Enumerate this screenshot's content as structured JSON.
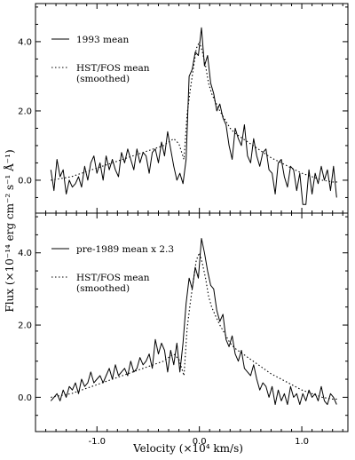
{
  "chart_data": [
    {
      "type": "line",
      "panel": "top",
      "xlim": [
        -1.6,
        1.45
      ],
      "ylim": [
        -0.95,
        5.1
      ],
      "yticks": [
        0.0,
        2.0,
        4.0
      ],
      "ytick_labels": [
        "0.0",
        "2.0",
        "4.0"
      ],
      "legend_position": "top-left",
      "series": [
        {
          "name": "1993 mean",
          "style": "solid",
          "x": [
            -1.45,
            -1.42,
            -1.39,
            -1.36,
            -1.33,
            -1.3,
            -1.27,
            -1.24,
            -1.21,
            -1.18,
            -1.15,
            -1.12,
            -1.09,
            -1.06,
            -1.03,
            -1.0,
            -0.97,
            -0.94,
            -0.91,
            -0.88,
            -0.85,
            -0.82,
            -0.79,
            -0.76,
            -0.73,
            -0.7,
            -0.67,
            -0.64,
            -0.61,
            -0.58,
            -0.55,
            -0.52,
            -0.49,
            -0.46,
            -0.43,
            -0.4,
            -0.37,
            -0.34,
            -0.31,
            -0.28,
            -0.25,
            -0.22,
            -0.19,
            -0.16,
            -0.13,
            -0.1,
            -0.07,
            -0.04,
            -0.01,
            0.02,
            0.05,
            0.08,
            0.11,
            0.14,
            0.17,
            0.2,
            0.23,
            0.26,
            0.29,
            0.32,
            0.35,
            0.38,
            0.41,
            0.44,
            0.47,
            0.5,
            0.53,
            0.56,
            0.59,
            0.62,
            0.65,
            0.68,
            0.71,
            0.74,
            0.77,
            0.8,
            0.83,
            0.86,
            0.89,
            0.92,
            0.95,
            0.98,
            1.01,
            1.04,
            1.07,
            1.1,
            1.13,
            1.16,
            1.19,
            1.22,
            1.25,
            1.28,
            1.31,
            1.34
          ],
          "y": [
            0.3,
            -0.3,
            0.6,
            0.1,
            0.3,
            -0.4,
            0.0,
            -0.2,
            -0.1,
            0.1,
            -0.2,
            0.4,
            0.0,
            0.5,
            0.7,
            0.2,
            0.5,
            0.0,
            0.7,
            0.3,
            0.6,
            0.3,
            0.1,
            0.8,
            0.5,
            0.9,
            0.6,
            0.3,
            0.9,
            0.5,
            0.8,
            0.7,
            0.2,
            0.8,
            0.9,
            0.5,
            1.1,
            0.7,
            1.4,
            0.9,
            0.4,
            0.0,
            0.2,
            -0.1,
            0.6,
            3.0,
            3.2,
            3.7,
            3.6,
            4.4,
            3.3,
            3.6,
            2.8,
            2.5,
            2.0,
            2.2,
            1.8,
            1.6,
            1.0,
            0.6,
            1.5,
            1.2,
            1.0,
            1.6,
            0.7,
            0.5,
            1.2,
            0.7,
            0.4,
            0.8,
            0.9,
            0.3,
            0.2,
            -0.4,
            0.5,
            0.6,
            0.1,
            -0.2,
            0.4,
            0.3,
            -0.3,
            0.2,
            -0.7,
            -0.7,
            0.3,
            -0.4,
            0.2,
            -0.1,
            0.4,
            0.0,
            0.3,
            -0.3,
            0.4,
            -0.5
          ]
        },
        {
          "name": "HST/FOS mean\n(smoothed)",
          "style": "dotted",
          "x": [
            -1.45,
            -1.35,
            -1.25,
            -1.15,
            -1.05,
            -0.95,
            -0.85,
            -0.75,
            -0.65,
            -0.55,
            -0.45,
            -0.4,
            -0.35,
            -0.3,
            -0.25,
            -0.2,
            -0.15,
            -0.12,
            -0.09,
            -0.06,
            -0.03,
            0.0,
            0.03,
            0.06,
            0.09,
            0.12,
            0.15,
            0.2,
            0.25,
            0.3,
            0.35,
            0.4,
            0.5,
            0.6,
            0.7,
            0.8,
            0.9,
            1.0,
            1.1,
            1.2,
            1.3,
            1.35
          ],
          "y": [
            0.0,
            0.05,
            0.1,
            0.2,
            0.3,
            0.4,
            0.5,
            0.6,
            0.7,
            0.8,
            0.9,
            0.95,
            1.0,
            1.1,
            1.2,
            1.05,
            0.6,
            1.9,
            2.6,
            3.2,
            3.8,
            4.0,
            3.7,
            3.3,
            2.8,
            2.5,
            2.3,
            2.0,
            1.75,
            1.5,
            1.35,
            1.25,
            1.05,
            0.85,
            0.65,
            0.5,
            0.35,
            0.2,
            0.1,
            0.0,
            -0.05,
            -0.05
          ]
        }
      ]
    },
    {
      "type": "line",
      "panel": "bottom",
      "xlim": [
        -1.6,
        1.45
      ],
      "ylim": [
        -0.95,
        5.1
      ],
      "yticks": [
        0.0,
        2.0,
        4.0
      ],
      "ytick_labels": [
        "0.0",
        "2.0",
        "4.0"
      ],
      "legend_position": "top-left",
      "series": [
        {
          "name": "pre-1989 mean x 2.3",
          "style": "solid",
          "x": [
            -1.45,
            -1.42,
            -1.39,
            -1.36,
            -1.33,
            -1.3,
            -1.27,
            -1.24,
            -1.21,
            -1.18,
            -1.15,
            -1.12,
            -1.09,
            -1.06,
            -1.03,
            -1.0,
            -0.97,
            -0.94,
            -0.91,
            -0.88,
            -0.85,
            -0.82,
            -0.79,
            -0.76,
            -0.73,
            -0.7,
            -0.67,
            -0.64,
            -0.61,
            -0.58,
            -0.55,
            -0.52,
            -0.49,
            -0.46,
            -0.43,
            -0.4,
            -0.37,
            -0.34,
            -0.31,
            -0.28,
            -0.25,
            -0.22,
            -0.19,
            -0.16,
            -0.13,
            -0.1,
            -0.07,
            -0.04,
            -0.01,
            0.02,
            0.05,
            0.08,
            0.11,
            0.14,
            0.17,
            0.2,
            0.23,
            0.26,
            0.29,
            0.32,
            0.35,
            0.38,
            0.41,
            0.44,
            0.47,
            0.5,
            0.53,
            0.56,
            0.59,
            0.62,
            0.65,
            0.68,
            0.71,
            0.74,
            0.77,
            0.8,
            0.83,
            0.86,
            0.89,
            0.92,
            0.95,
            0.98,
            1.01,
            1.04,
            1.07,
            1.1,
            1.13,
            1.16,
            1.19,
            1.22,
            1.25,
            1.28,
            1.31,
            1.34
          ],
          "y": [
            -0.1,
            0.0,
            0.1,
            -0.1,
            0.2,
            0.0,
            0.3,
            0.2,
            0.4,
            0.1,
            0.5,
            0.3,
            0.4,
            0.7,
            0.4,
            0.5,
            0.6,
            0.4,
            0.6,
            0.8,
            0.5,
            0.9,
            0.6,
            0.7,
            0.8,
            0.6,
            1.0,
            0.7,
            0.8,
            1.1,
            0.9,
            1.0,
            1.2,
            0.8,
            1.6,
            1.2,
            1.5,
            1.3,
            0.7,
            1.3,
            0.9,
            1.5,
            0.7,
            1.5,
            2.6,
            3.3,
            3.0,
            3.6,
            3.3,
            4.4,
            4.0,
            3.5,
            3.1,
            3.0,
            2.4,
            2.1,
            2.3,
            1.6,
            1.4,
            1.7,
            1.2,
            1.0,
            1.3,
            0.8,
            0.7,
            0.6,
            0.9,
            0.5,
            0.2,
            0.4,
            0.3,
            0.0,
            0.3,
            -0.2,
            0.2,
            -0.1,
            0.1,
            -0.2,
            0.3,
            0.0,
            0.1,
            -0.2,
            0.1,
            -0.1,
            0.2,
            0.0,
            0.1,
            -0.1,
            0.3,
            -0.1,
            -0.2,
            0.1,
            0.0,
            -0.2
          ]
        },
        {
          "name": "HST/FOS mean\n(smoothed)",
          "style": "dotted",
          "x": [
            -1.45,
            -1.35,
            -1.25,
            -1.15,
            -1.05,
            -0.95,
            -0.85,
            -0.75,
            -0.65,
            -0.55,
            -0.45,
            -0.4,
            -0.35,
            -0.3,
            -0.25,
            -0.2,
            -0.15,
            -0.12,
            -0.09,
            -0.06,
            -0.03,
            0.0,
            0.03,
            0.06,
            0.09,
            0.12,
            0.15,
            0.2,
            0.25,
            0.3,
            0.35,
            0.4,
            0.5,
            0.6,
            0.7,
            0.8,
            0.9,
            1.0,
            1.1,
            1.2,
            1.3,
            1.35
          ],
          "y": [
            0.0,
            0.05,
            0.1,
            0.2,
            0.3,
            0.4,
            0.5,
            0.6,
            0.7,
            0.8,
            0.9,
            0.95,
            1.0,
            1.1,
            1.2,
            1.05,
            0.6,
            1.9,
            2.6,
            3.2,
            3.8,
            4.0,
            3.7,
            3.3,
            2.8,
            2.5,
            2.3,
            2.0,
            1.75,
            1.5,
            1.35,
            1.25,
            1.05,
            0.85,
            0.65,
            0.5,
            0.35,
            0.2,
            0.1,
            0.0,
            -0.05,
            -0.05
          ]
        }
      ]
    }
  ],
  "shared_x": {
    "xticks": [
      -1.0,
      0.0,
      1.0
    ],
    "xtick_labels": [
      "-1.0",
      "0.0",
      "1.0"
    ],
    "xlabel": "Velocity (×10⁴ km/s)"
  },
  "shared_y": {
    "ylabel": "Flux (×10⁻¹⁴ erg cm⁻² s⁻¹ Å⁻¹)"
  },
  "colors": {
    "line": "#000000",
    "axes": "#000000",
    "background": "#ffffff"
  }
}
